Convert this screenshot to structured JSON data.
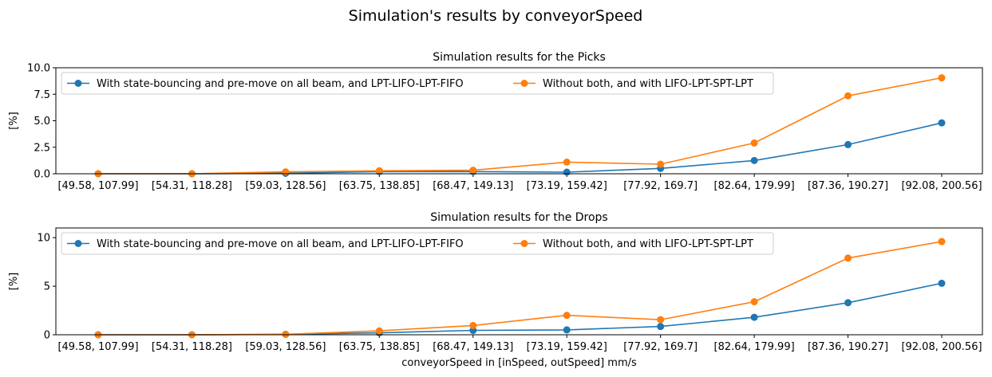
{
  "suptitle": "Simulation's results by conveyorSpeed",
  "chart_data": [
    {
      "type": "line",
      "title": "Simulation results for the Picks",
      "xlabel": "",
      "ylabel": "[%]",
      "ylim": [
        0,
        10
      ],
      "yticks": [
        "0.0",
        "2.5",
        "5.0",
        "7.5",
        "10.0"
      ],
      "ytick_values": [
        0,
        2.5,
        5,
        7.5,
        10
      ],
      "categories": [
        "[49.58, 107.99]",
        "[54.31, 118.28]",
        "[59.03, 128.56]",
        "[63.75, 138.85]",
        "[68.47, 149.13]",
        "[73.19, 159.42]",
        "[77.92, 169.7]",
        "[82.64, 179.99]",
        "[87.36, 190.27]",
        "[92.08, 200.56]"
      ],
      "legend_position": "top-left",
      "series": [
        {
          "name": "With state-bouncing and pre-move on all beam, and LPT-LIFO-LPT-FIFO",
          "color": "#1f77b4",
          "values": [
            0.0,
            0.0,
            0.05,
            0.2,
            0.2,
            0.15,
            0.5,
            1.25,
            2.75,
            4.8
          ]
        },
        {
          "name": "Without both, and with LIFO-LPT-SPT-LPT",
          "color": "#ff7f0e",
          "values": [
            0.0,
            0.0,
            0.18,
            0.28,
            0.33,
            1.1,
            0.9,
            2.9,
            7.35,
            9.05
          ]
        }
      ]
    },
    {
      "type": "line",
      "title": "Simulation results for the Drops",
      "xlabel": "conveyorSpeed in [inSpeed, outSpeed] mm/s",
      "ylabel": "[%]",
      "ylim": [
        0,
        11
      ],
      "yticks": [
        "0",
        "5",
        "10"
      ],
      "ytick_values": [
        0,
        5,
        10
      ],
      "categories": [
        "[49.58, 107.99]",
        "[54.31, 118.28]",
        "[59.03, 128.56]",
        "[63.75, 138.85]",
        "[68.47, 149.13]",
        "[73.19, 159.42]",
        "[77.92, 169.7]",
        "[82.64, 179.99]",
        "[87.36, 190.27]",
        "[92.08, 200.56]"
      ],
      "legend_position": "top-left",
      "series": [
        {
          "name": "With state-bouncing and pre-move on all beam, and LPT-LIFO-LPT-FIFO",
          "color": "#1f77b4",
          "values": [
            0.0,
            0.0,
            0.05,
            0.2,
            0.45,
            0.5,
            0.85,
            1.8,
            3.3,
            5.3
          ]
        },
        {
          "name": "Without both, and with LIFO-LPT-SPT-LPT",
          "color": "#ff7f0e",
          "values": [
            0.0,
            0.0,
            0.05,
            0.4,
            0.95,
            2.0,
            1.55,
            3.4,
            7.9,
            9.6
          ]
        }
      ]
    }
  ]
}
